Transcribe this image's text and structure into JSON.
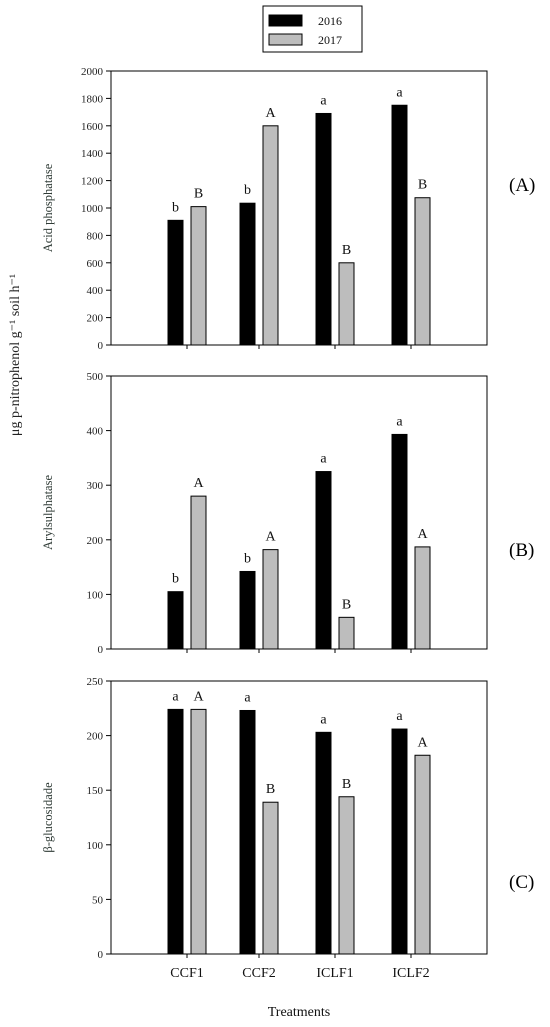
{
  "shared_ylabel": "μg p-nitrophenol g⁻¹ soil h⁻¹",
  "xlabel": "Treatments",
  "legend": [
    {
      "label": "2016",
      "color": "#000000"
    },
    {
      "label": "2017",
      "color": "#bdbdbd"
    }
  ],
  "colors": {
    "series_2016": "#000000",
    "series_2017": "#bdbdbd"
  },
  "chart_data": [
    {
      "type": "bar",
      "panel_label": "(A)",
      "ylabel": "Acid phosphatase",
      "categories": [
        "CCF1",
        "CCF2",
        "ICLF1",
        "ICLF2"
      ],
      "ylim": [
        0,
        2000
      ],
      "yticks": [
        0,
        200,
        400,
        600,
        800,
        1000,
        1200,
        1400,
        1600,
        1800,
        2000
      ],
      "series": [
        {
          "name": "2016",
          "values": [
            910,
            1035,
            1690,
            1750
          ],
          "letters": [
            "b",
            "b",
            "a",
            "a"
          ]
        },
        {
          "name": "2017",
          "values": [
            1010,
            1600,
            600,
            1075
          ],
          "letters": [
            "B",
            "A",
            "B",
            "B"
          ]
        }
      ]
    },
    {
      "type": "bar",
      "panel_label": "(B)",
      "ylabel": "Arylsulphatase",
      "categories": [
        "CCF1",
        "CCF2",
        "ICLF1",
        "ICLF2"
      ],
      "ylim": [
        0,
        500
      ],
      "yticks": [
        0,
        100,
        200,
        300,
        400,
        500
      ],
      "series": [
        {
          "name": "2016",
          "values": [
            105,
            142,
            325,
            393
          ],
          "letters": [
            "b",
            "b",
            "a",
            "a"
          ]
        },
        {
          "name": "2017",
          "values": [
            280,
            182,
            58,
            187
          ],
          "letters": [
            "A",
            "A",
            "B",
            "A"
          ]
        }
      ]
    },
    {
      "type": "bar",
      "panel_label": "(C)",
      "ylabel": "β-glucosidade",
      "categories": [
        "CCF1",
        "CCF2",
        "ICLF1",
        "ICLF2"
      ],
      "ylim": [
        0,
        250
      ],
      "yticks": [
        0,
        50,
        100,
        150,
        200,
        250
      ],
      "series": [
        {
          "name": "2016",
          "values": [
            224,
            223,
            203,
            206
          ],
          "letters": [
            "a",
            "a",
            "a",
            "a"
          ]
        },
        {
          "name": "2017",
          "values": [
            224,
            139,
            144,
            182
          ],
          "letters": [
            "A",
            "B",
            "B",
            "A"
          ]
        }
      ]
    }
  ]
}
